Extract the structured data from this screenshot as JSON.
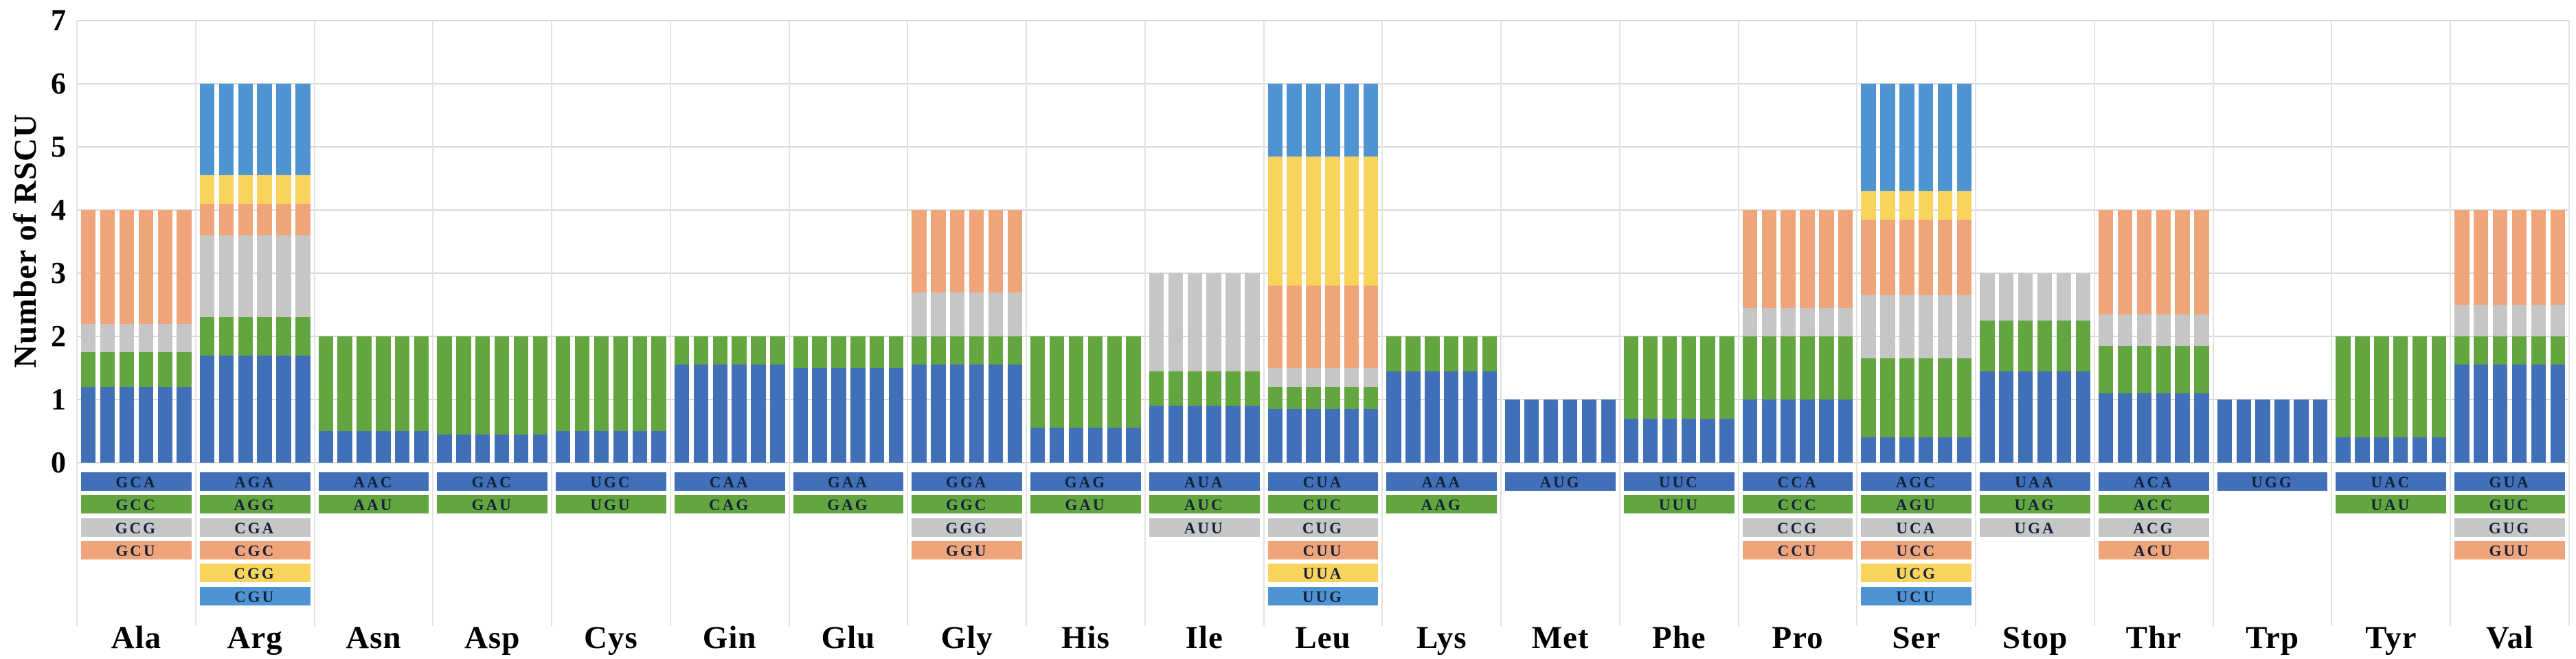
{
  "y_axis": {
    "title": "Number of RSCU",
    "ticks": [
      0,
      1,
      2,
      3,
      4,
      5,
      6,
      7
    ]
  },
  "chart_data": {
    "type": "bar",
    "stacked": true,
    "bars_per_group": 6,
    "title": "",
    "xlabel": "",
    "ylabel": "Number of RSCU",
    "ylim": [
      0,
      7
    ],
    "grid": "horizontal",
    "legend_position": "none (codon color key shown as table below axis)",
    "stack_colors": [
      "#4270B8",
      "#63A63F",
      "#C6C6C6",
      "#F0A47A",
      "#F9D45C",
      "#4E94D3"
    ],
    "groups": [
      {
        "name": "Ala",
        "codons": [
          {
            "codon": "GCA",
            "rscu": 1.2
          },
          {
            "codon": "GCC",
            "rscu": 0.55
          },
          {
            "codon": "GCG",
            "rscu": 0.45
          },
          {
            "codon": "GCU",
            "rscu": 1.8
          }
        ]
      },
      {
        "name": "Arg",
        "codons": [
          {
            "codon": "AGA",
            "rscu": 1.7
          },
          {
            "codon": "AGG",
            "rscu": 0.6
          },
          {
            "codon": "CGA",
            "rscu": 1.3
          },
          {
            "codon": "CGC",
            "rscu": 0.5
          },
          {
            "codon": "CGG",
            "rscu": 0.45
          },
          {
            "codon": "CGU",
            "rscu": 1.45
          }
        ]
      },
      {
        "name": "Asn",
        "codons": [
          {
            "codon": "AAC",
            "rscu": 0.5
          },
          {
            "codon": "AAU",
            "rscu": 1.5
          }
        ]
      },
      {
        "name": "Asp",
        "codons": [
          {
            "codon": "GAC",
            "rscu": 0.45
          },
          {
            "codon": "GAU",
            "rscu": 1.55
          }
        ]
      },
      {
        "name": "Cys",
        "codons": [
          {
            "codon": "UGC",
            "rscu": 0.5
          },
          {
            "codon": "UGU",
            "rscu": 1.5
          }
        ]
      },
      {
        "name": "Gin",
        "codons": [
          {
            "codon": "CAA",
            "rscu": 1.55
          },
          {
            "codon": "CAG",
            "rscu": 0.45
          }
        ]
      },
      {
        "name": "Glu",
        "codons": [
          {
            "codon": "GAA",
            "rscu": 1.5
          },
          {
            "codon": "GAG",
            "rscu": 0.5
          }
        ]
      },
      {
        "name": "Gly",
        "codons": [
          {
            "codon": "GGA",
            "rscu": 1.55
          },
          {
            "codon": "GGC",
            "rscu": 0.45
          },
          {
            "codon": "GGG",
            "rscu": 0.7
          },
          {
            "codon": "GGU",
            "rscu": 1.3
          }
        ]
      },
      {
        "name": "His",
        "codons": [
          {
            "codon": "GAG",
            "rscu": 0.55
          },
          {
            "codon": "GAU",
            "rscu": 1.45
          }
        ]
      },
      {
        "name": "Ile",
        "codons": [
          {
            "codon": "AUA",
            "rscu": 0.9
          },
          {
            "codon": "AUC",
            "rscu": 0.55
          },
          {
            "codon": "AUU",
            "rscu": 1.55
          }
        ]
      },
      {
        "name": "Leu",
        "codons": [
          {
            "codon": "CUA",
            "rscu": 0.85
          },
          {
            "codon": "CUC",
            "rscu": 0.35
          },
          {
            "codon": "CUG",
            "rscu": 0.3
          },
          {
            "codon": "CUU",
            "rscu": 1.3
          },
          {
            "codon": "UUA",
            "rscu": 2.05
          },
          {
            "codon": "UUG",
            "rscu": 1.15
          }
        ]
      },
      {
        "name": "Lys",
        "codons": [
          {
            "codon": "AAA",
            "rscu": 1.45
          },
          {
            "codon": "AAG",
            "rscu": 0.55
          }
        ]
      },
      {
        "name": "Met",
        "codons": [
          {
            "codon": "AUG",
            "rscu": 1.0
          }
        ]
      },
      {
        "name": "Phe",
        "codons": [
          {
            "codon": "UUC",
            "rscu": 0.7
          },
          {
            "codon": "UUU",
            "rscu": 1.3
          }
        ]
      },
      {
        "name": "Pro",
        "codons": [
          {
            "codon": "CCA",
            "rscu": 1.0
          },
          {
            "codon": "CCC",
            "rscu": 1.0
          },
          {
            "codon": "CCG",
            "rscu": 0.45
          },
          {
            "codon": "CCU",
            "rscu": 1.55
          }
        ]
      },
      {
        "name": "Ser",
        "codons": [
          {
            "codon": "AGC",
            "rscu": 0.4
          },
          {
            "codon": "AGU",
            "rscu": 1.25
          },
          {
            "codon": "UCA",
            "rscu": 1.0
          },
          {
            "codon": "UCC",
            "rscu": 1.2
          },
          {
            "codon": "UCG",
            "rscu": 0.45
          },
          {
            "codon": "UCU",
            "rscu": 1.7
          }
        ]
      },
      {
        "name": "Stop",
        "codons": [
          {
            "codon": "UAA",
            "rscu": 1.45
          },
          {
            "codon": "UAG",
            "rscu": 0.8
          },
          {
            "codon": "UGA",
            "rscu": 0.75
          }
        ]
      },
      {
        "name": "Thr",
        "codons": [
          {
            "codon": "ACA",
            "rscu": 1.1
          },
          {
            "codon": "ACC",
            "rscu": 0.75
          },
          {
            "codon": "ACG",
            "rscu": 0.5
          },
          {
            "codon": "ACU",
            "rscu": 1.65
          }
        ]
      },
      {
        "name": "Trp",
        "codons": [
          {
            "codon": "UGG",
            "rscu": 1.0
          }
        ]
      },
      {
        "name": "Tyr",
        "codons": [
          {
            "codon": "UAC",
            "rscu": 0.4
          },
          {
            "codon": "UAU",
            "rscu": 1.6
          }
        ]
      },
      {
        "name": "Val",
        "codons": [
          {
            "codon": "GUA",
            "rscu": 1.55
          },
          {
            "codon": "GUC",
            "rscu": 0.45
          },
          {
            "codon": "GUG",
            "rscu": 0.5
          },
          {
            "codon": "GUU",
            "rscu": 1.5
          }
        ]
      }
    ]
  }
}
